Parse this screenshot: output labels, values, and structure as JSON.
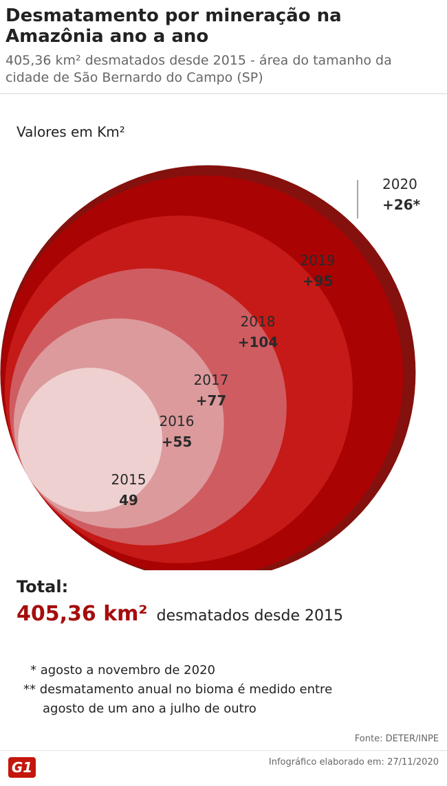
{
  "header": {
    "title": "Desmatamento por mineração na Amazônia ano a ano",
    "subtitle": "405,36 km² desmatados desde 2015 - área do tamanho da cidade de São Bernardo do Campo (SP)"
  },
  "chart_data": {
    "type": "bubble",
    "units_label": "Valores em Km²",
    "categories": [
      "2015",
      "2016",
      "2017",
      "2018",
      "2019",
      "2020"
    ],
    "value_labels": [
      "49",
      "+55",
      "+77",
      "+104",
      "+95",
      "+26*"
    ],
    "values": [
      49,
      55,
      77,
      104,
      95,
      26
    ],
    "cumulative": [
      49,
      104,
      181,
      285,
      380,
      406
    ],
    "colors": [
      "#efd0d0",
      "#dc9a9c",
      "#cf5c61",
      "#c51a17",
      "#aa0304",
      "#84110d"
    ]
  },
  "total": {
    "label": "Total:",
    "value": "405,36 km²",
    "text": "desmatados desde 2015"
  },
  "notes": {
    "note1": "* agosto a novembro de 2020",
    "note2_line1": "** desmatamento anual no bioma é medido entre",
    "note2_line2": "agosto de um ano a julho de outro"
  },
  "footer": {
    "source": "Fonte:  DETER/INPE",
    "credit": "Infográfico elaborado em: 27/11/2020",
    "logo": "G1"
  }
}
